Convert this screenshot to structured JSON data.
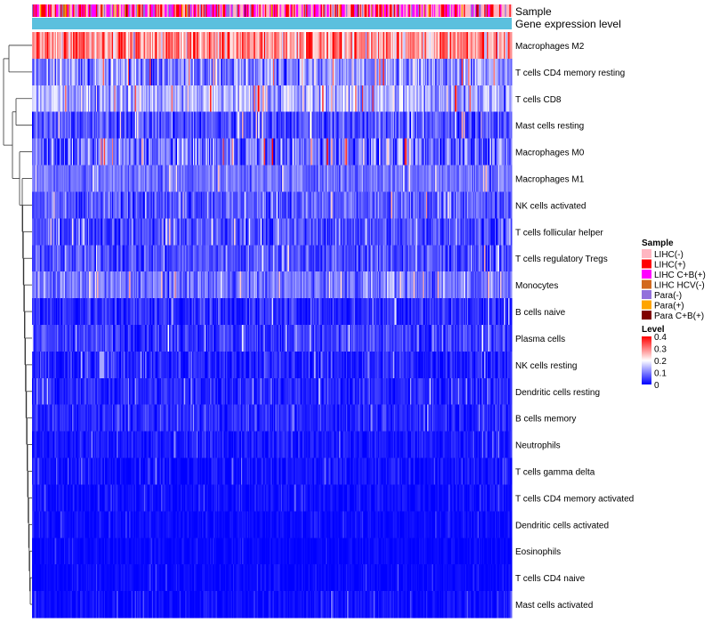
{
  "chart_data": {
    "type": "heatmap",
    "title": "",
    "annotation_tracks": [
      "Sample",
      "Gene expression level"
    ],
    "rows": [
      {
        "label": "Macrophages M2",
        "mean": 0.28,
        "spread": 0.09
      },
      {
        "label": "T cells CD4 memory resting",
        "mean": 0.11,
        "spread": 0.07
      },
      {
        "label": "T cells CD8",
        "mean": 0.14,
        "spread": 0.07
      },
      {
        "label": "Mast cells resting",
        "mean": 0.06,
        "spread": 0.05
      },
      {
        "label": "Macrophages M0",
        "mean": 0.08,
        "spread": 0.08
      },
      {
        "label": "Macrophages M1",
        "mean": 0.09,
        "spread": 0.04
      },
      {
        "label": "NK cells activated",
        "mean": 0.07,
        "spread": 0.05
      },
      {
        "label": "T cells follicular helper",
        "mean": 0.06,
        "spread": 0.045
      },
      {
        "label": "T cells regulatory  Tregs",
        "mean": 0.06,
        "spread": 0.045
      },
      {
        "label": "Monocytes",
        "mean": 0.09,
        "spread": 0.045
      },
      {
        "label": "B cells naive",
        "mean": 0.035,
        "spread": 0.04
      },
      {
        "label": "Plasma cells",
        "mean": 0.045,
        "spread": 0.04
      },
      {
        "label": "NK cells resting",
        "mean": 0.025,
        "spread": 0.035
      },
      {
        "label": "Dendritic cells resting",
        "mean": 0.03,
        "spread": 0.03
      },
      {
        "label": "B cells memory",
        "mean": 0.03,
        "spread": 0.03
      },
      {
        "label": "Neutrophils",
        "mean": 0.02,
        "spread": 0.025
      },
      {
        "label": "T cells gamma delta",
        "mean": 0.012,
        "spread": 0.025
      },
      {
        "label": "T cells CD4 memory activated",
        "mean": 0.01,
        "spread": 0.02
      },
      {
        "label": "Dendritic cells activated",
        "mean": 0.008,
        "spread": 0.015
      },
      {
        "label": "Eosinophils",
        "mean": 0.005,
        "spread": 0.012
      },
      {
        "label": "T cells CD4 naive",
        "mean": 0.005,
        "spread": 0.015
      },
      {
        "label": "Mast cells activated",
        "mean": 0.01,
        "spread": 0.02
      }
    ],
    "n_columns": 420,
    "value_range": [
      0,
      0.4
    ],
    "legend_sample": {
      "title": "Sample",
      "items": [
        {
          "label": "LIHC(-)",
          "color": "#ffb6c1"
        },
        {
          "label": "LIHC(+)",
          "color": "#ff0000"
        },
        {
          "label": "LIHC C+B(+)",
          "color": "#ff00ff"
        },
        {
          "label": "LIHC HCV(-)",
          "color": "#d2691e"
        },
        {
          "label": "Para(-)",
          "color": "#9370db"
        },
        {
          "label": "Para(+)",
          "color": "#ffa500"
        },
        {
          "label": "Para C+B(+)",
          "color": "#800000"
        }
      ]
    },
    "legend_level": {
      "title": "Level",
      "ticks": [
        "0.4",
        "0.3",
        "0.2",
        "0.1",
        "0"
      ],
      "colors": [
        "#0000ff",
        "#ffffff",
        "#ff0000"
      ]
    },
    "gene_expression_color": "#5bc0de"
  }
}
